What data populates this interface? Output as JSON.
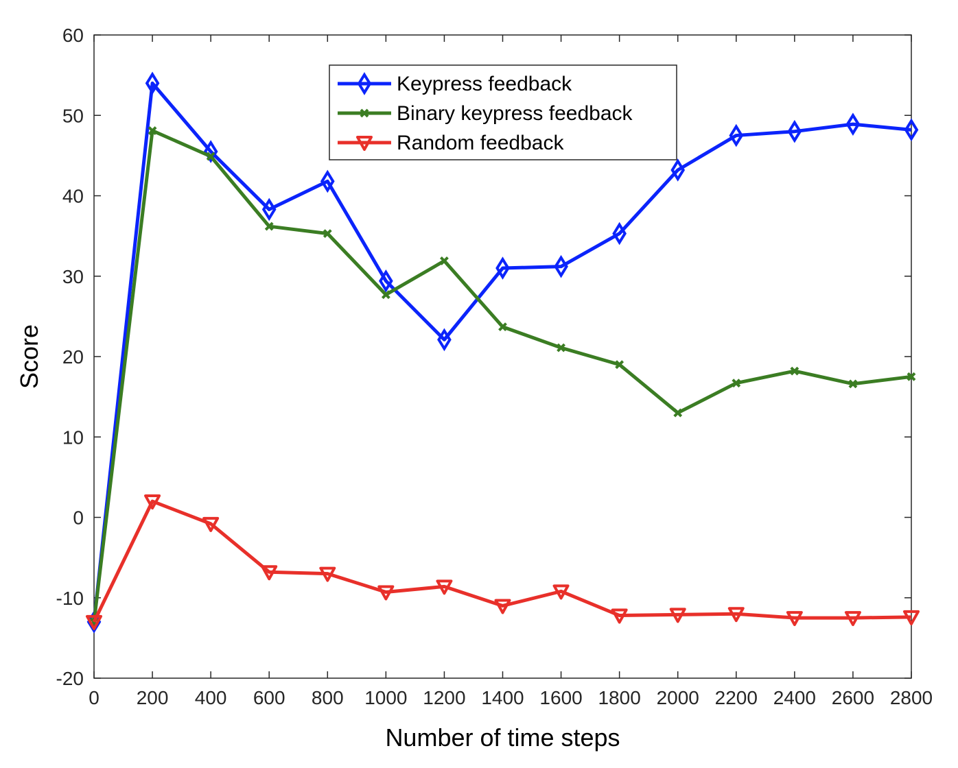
{
  "chart_data": {
    "type": "line",
    "title": "",
    "xlabel": "Number of time steps",
    "ylabel": "Score",
    "xlim": [
      0,
      2800
    ],
    "ylim": [
      -20,
      60
    ],
    "x": [
      0,
      200,
      400,
      600,
      800,
      1000,
      1200,
      1400,
      1600,
      1800,
      2000,
      2200,
      2400,
      2600,
      2800
    ],
    "xticks": [
      0,
      200,
      400,
      600,
      800,
      1000,
      1200,
      1400,
      1600,
      1800,
      2000,
      2200,
      2400,
      2600,
      2800
    ],
    "yticks": [
      -20,
      -10,
      0,
      10,
      20,
      30,
      40,
      50,
      60
    ],
    "grid": false,
    "legend_position": "top-center",
    "series": [
      {
        "name": "Keypress feedback",
        "color": "#0b24fb",
        "marker": "diamond",
        "values": [
          -13,
          54,
          45.5,
          38.3,
          41.8,
          29.4,
          22.1,
          31.0,
          31.2,
          35.3,
          43.2,
          47.5,
          48.0,
          48.9,
          48.2
        ]
      },
      {
        "name": "Binary keypress feedback",
        "color": "#3b7d23",
        "marker": "x",
        "values": [
          -13,
          48.1,
          44.9,
          36.2,
          35.3,
          27.7,
          31.9,
          23.7,
          21.1,
          19.0,
          13.0,
          16.7,
          18.2,
          16.6,
          17.5
        ]
      },
      {
        "name": "Random feedback",
        "color": "#e8302a",
        "marker": "triangle-down",
        "values": [
          -13,
          2.0,
          -0.8,
          -6.8,
          -7.0,
          -9.3,
          -8.6,
          -11.0,
          -9.2,
          -12.2,
          -12.1,
          -12.0,
          -12.5,
          -12.5,
          -12.4
        ]
      }
    ]
  }
}
